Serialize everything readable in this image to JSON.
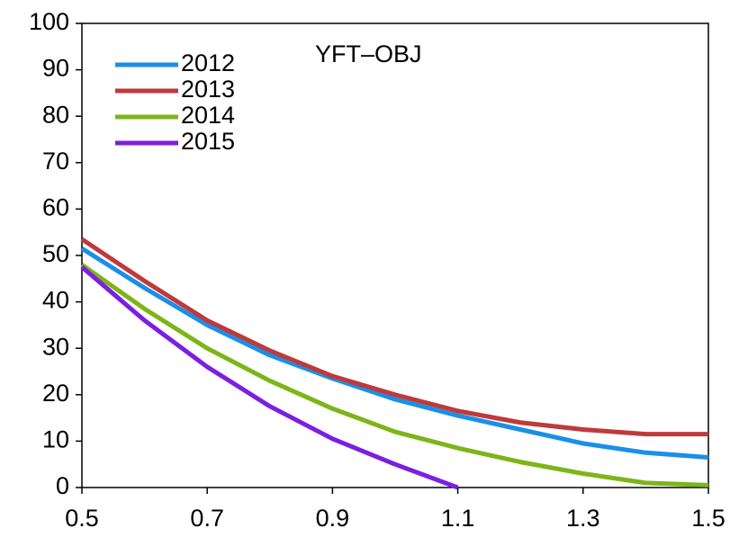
{
  "chart_data": {
    "type": "line",
    "title": "YFT–OBJ",
    "x": [
      0.5,
      0.6,
      0.7,
      0.8,
      0.9,
      1.0,
      1.1,
      1.2,
      1.3,
      1.4,
      1.5
    ],
    "series": [
      {
        "name": "2012",
        "color": "#1a8fe8",
        "values": [
          51.5,
          43,
          35,
          28.5,
          23.5,
          19,
          15.5,
          12.5,
          9.5,
          7.5,
          6.5
        ]
      },
      {
        "name": "2013",
        "color": "#c0393b",
        "values": [
          53.5,
          44.5,
          36,
          29.5,
          24,
          20,
          16.5,
          14,
          12.5,
          11.5,
          11.5
        ]
      },
      {
        "name": "2014",
        "color": "#7cb518",
        "values": [
          48,
          38.5,
          30,
          23,
          17,
          12,
          8.5,
          5.5,
          3,
          1,
          0.5
        ]
      },
      {
        "name": "2015",
        "color": "#7b1fe0",
        "values": [
          47.5,
          36,
          26,
          17.5,
          10.5,
          5,
          0,
          null,
          null,
          null,
          null
        ]
      }
    ],
    "xlim": [
      0.5,
      1.5
    ],
    "xticks": [
      0.5,
      0.7,
      0.9,
      1.1,
      1.3,
      1.5
    ],
    "ylim": [
      0,
      100
    ],
    "yticks": [
      0,
      10,
      20,
      30,
      40,
      50,
      60,
      70,
      80,
      90,
      100
    ],
    "grid": false,
    "legend": "upper left"
  }
}
